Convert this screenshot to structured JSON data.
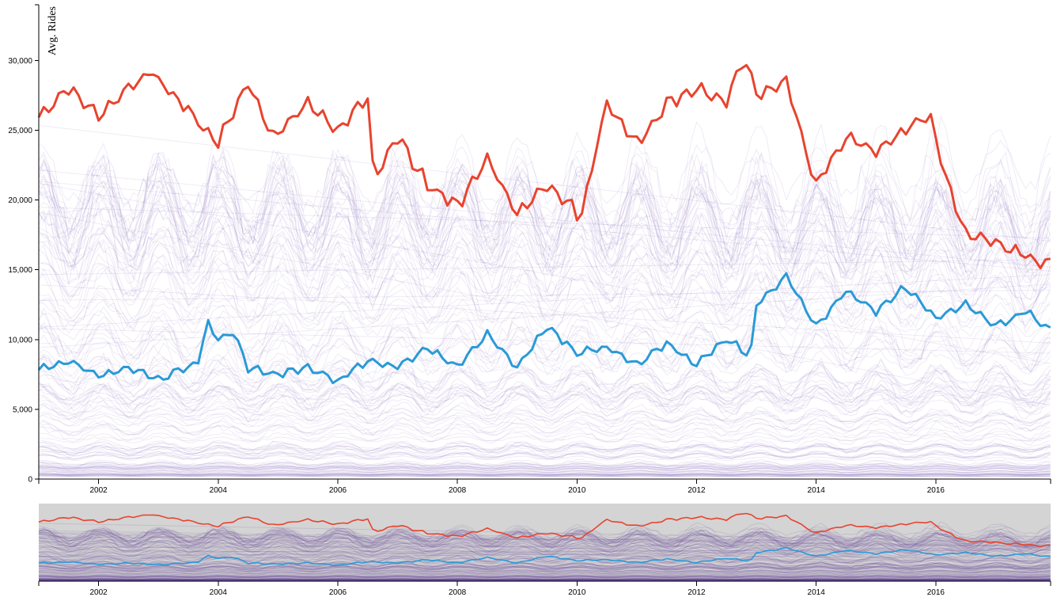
{
  "chart_data": [
    {
      "type": "line",
      "role": "focus",
      "ylabel": "Avg. Rides",
      "xlabel": "",
      "xlim": [
        2001.0,
        2017.92
      ],
      "ylim": [
        0,
        34000
      ],
      "y_ticks": [
        0,
        5000,
        10000,
        15000,
        20000,
        25000,
        30000
      ],
      "y_tick_labels": [
        "0",
        "5,000",
        "10,000",
        "15,000",
        "20,000",
        "25,000",
        "30,000"
      ],
      "x_ticks": [
        2002,
        2004,
        2006,
        2008,
        2010,
        2012,
        2014,
        2016
      ],
      "x_tick_labels": [
        "2002",
        "2004",
        "2006",
        "2008",
        "2010",
        "2012",
        "2014",
        "2016"
      ],
      "grid": false,
      "background_series_count": 140,
      "background_series_color": "#7b5bb5",
      "series": [
        {
          "color": "#e8432e",
          "x": [
            2001.0,
            2001.5,
            2002.0,
            2002.5,
            2002.85,
            2003.5,
            2004.0,
            2004.5,
            2004.9,
            2005.5,
            2006.0,
            2006.5,
            2006.6,
            2007.0,
            2007.5,
            2008.0,
            2008.5,
            2009.0,
            2009.5,
            2009.95,
            2010.05,
            2010.5,
            2011.0,
            2011.5,
            2012.0,
            2012.5,
            2012.8,
            2013.0,
            2013.5,
            2014.0,
            2014.5,
            2015.0,
            2015.5,
            2015.9,
            2016.0,
            2016.5,
            2017.0,
            2017.5,
            2017.92
          ],
          "y": [
            26000,
            28000,
            26000,
            28000,
            29300,
            26500,
            24000,
            28500,
            24500,
            27000,
            25000,
            27500,
            21500,
            24500,
            21000,
            19500,
            23000,
            19000,
            21000,
            19500,
            18500,
            27000,
            24000,
            27000,
            28000,
            27000,
            30300,
            27500,
            28500,
            21000,
            24500,
            23500,
            25000,
            26200,
            24000,
            17500,
            17000,
            16000,
            15500
          ]
        },
        {
          "color": "#2a9ad6",
          "x": [
            2001.0,
            2001.5,
            2002.0,
            2002.5,
            2003.0,
            2003.5,
            2003.7,
            2003.8,
            2004.0,
            2004.25,
            2004.5,
            2005.0,
            2005.5,
            2006.0,
            2006.5,
            2007.0,
            2007.5,
            2008.0,
            2008.5,
            2009.0,
            2009.5,
            2010.0,
            2010.5,
            2011.0,
            2011.5,
            2012.0,
            2012.5,
            2012.9,
            2013.0,
            2013.5,
            2014.0,
            2014.5,
            2015.0,
            2015.5,
            2016.0,
            2016.5,
            2017.0,
            2017.5,
            2017.92
          ],
          "y": [
            7800,
            8500,
            7500,
            8000,
            7200,
            8000,
            8600,
            11500,
            10000,
            10500,
            8000,
            7500,
            8000,
            7000,
            8500,
            8000,
            9500,
            8000,
            10500,
            8000,
            11000,
            9000,
            9500,
            8200,
            9800,
            8200,
            10000,
            8800,
            12500,
            14500,
            11000,
            13500,
            12000,
            13800,
            11500,
            12500,
            11000,
            12000,
            10700
          ]
        }
      ]
    },
    {
      "type": "line",
      "role": "context",
      "xlim": [
        2001.0,
        2017.92
      ],
      "x_ticks": [
        2002,
        2004,
        2006,
        2008,
        2010,
        2012,
        2014,
        2016
      ],
      "x_tick_labels": [
        "2002",
        "2004",
        "2006",
        "2008",
        "2010",
        "2012",
        "2014",
        "2016"
      ],
      "brush_background": "#d4d4d4",
      "series": [
        {
          "color": "#e8432e"
        },
        {
          "color": "#2a9ad6"
        }
      ]
    }
  ]
}
